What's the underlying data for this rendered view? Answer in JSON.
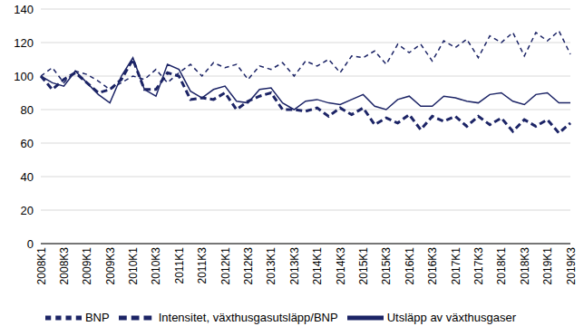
{
  "chart_data": {
    "type": "line",
    "categories": [
      "2008K1",
      null,
      "2008K3",
      null,
      "2009K1",
      null,
      "2009K3",
      null,
      "2010K1",
      null,
      "2010K3",
      null,
      "2011K1",
      null,
      "2011K3",
      null,
      "2012K1",
      null,
      "2012K3",
      null,
      "2013K1",
      null,
      "2013K3",
      null,
      "2014K1",
      null,
      "2014K3",
      null,
      "2015K1",
      null,
      "2015K3",
      null,
      "2016K1",
      null,
      "2016K3",
      null,
      "2017K1",
      null,
      "2017K3",
      null,
      "2018K1",
      null,
      "2018K3",
      null,
      "2019K1",
      null,
      "2019K3"
    ],
    "series": [
      {
        "name": "Utsläpp av växthusgaser",
        "color": "#1c2466",
        "line_style": "solid",
        "values": [
          100,
          96,
          94,
          103,
          96,
          89,
          84,
          100,
          111,
          92,
          88,
          107,
          104,
          91,
          87,
          92,
          94,
          85,
          84,
          92,
          93,
          84,
          80,
          85,
          86,
          84,
          83,
          86,
          89,
          82,
          80,
          86,
          88,
          82,
          82,
          88,
          87,
          85,
          84,
          89,
          90,
          85,
          83,
          89,
          90,
          84,
          84
        ]
      },
      {
        "name": "BNP",
        "color": "#1c2466",
        "line_style": "dashed",
        "values": [
          100,
          105,
          96,
          103,
          101,
          97,
          92,
          96,
          100,
          98,
          104,
          96,
          102,
          107,
          100,
          108,
          105,
          107,
          98,
          106,
          104,
          108,
          100,
          109,
          106,
          110,
          102,
          112,
          111,
          115,
          107,
          119,
          114,
          119,
          109,
          121,
          117,
          122,
          111,
          124,
          120,
          126,
          112,
          126,
          121,
          127,
          113
        ]
      },
      {
        "name": "Intensitet, växthusgasutsläpp/BNP",
        "color": "#1c2466",
        "line_style": "dashed",
        "values": [
          100,
          92,
          98,
          102,
          96,
          90,
          92,
          98,
          110,
          92,
          92,
          102,
          100,
          86,
          87,
          86,
          90,
          80,
          85,
          88,
          90,
          80,
          80,
          79,
          81,
          76,
          81,
          77,
          81,
          71,
          75,
          72,
          77,
          68,
          76,
          73,
          76,
          70,
          76,
          71,
          75,
          67,
          74,
          70,
          74,
          66,
          72
        ]
      }
    ],
    "ylim": [
      0,
      140
    ],
    "yticks": [
      0,
      20,
      40,
      60,
      80,
      100,
      120,
      140
    ],
    "grid": true,
    "legend": "bottom"
  }
}
